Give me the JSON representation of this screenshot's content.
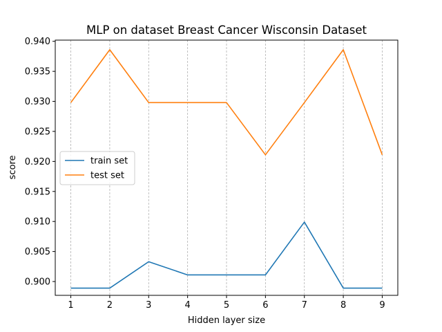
{
  "chart_data": {
    "type": "line",
    "title": "MLP on dataset Breast Cancer Wisconsin Dataset",
    "xlabel": "Hidden layer size",
    "ylabel": "score",
    "x": [
      1,
      2,
      3,
      4,
      5,
      6,
      7,
      8,
      9
    ],
    "x_tick_labels": [
      "1",
      "2",
      "3",
      "4",
      "5",
      "6",
      "7",
      "8",
      "9"
    ],
    "y_tick_values": [
      0.9,
      0.905,
      0.91,
      0.915,
      0.92,
      0.925,
      0.93,
      0.935,
      0.94
    ],
    "y_tick_labels": [
      "0.900",
      "0.905",
      "0.910",
      "0.915",
      "0.920",
      "0.925",
      "0.930",
      "0.935",
      "0.940"
    ],
    "xlim": [
      0.6,
      9.4
    ],
    "ylim": [
      0.8977,
      0.9402
    ],
    "grid": "vertical dashed",
    "legend_position": "center-left",
    "series": [
      {
        "name": "train set",
        "color": "#1f77b4",
        "values": [
          0.8989,
          0.8989,
          0.9033,
          0.9011,
          0.9011,
          0.9011,
          0.9099,
          0.8989,
          0.8989
        ]
      },
      {
        "name": "test set",
        "color": "#ff7f0e",
        "values": [
          0.9298,
          0.9386,
          0.9298,
          0.9298,
          0.9298,
          0.9211,
          0.9298,
          0.9386,
          0.9211
        ]
      }
    ]
  }
}
